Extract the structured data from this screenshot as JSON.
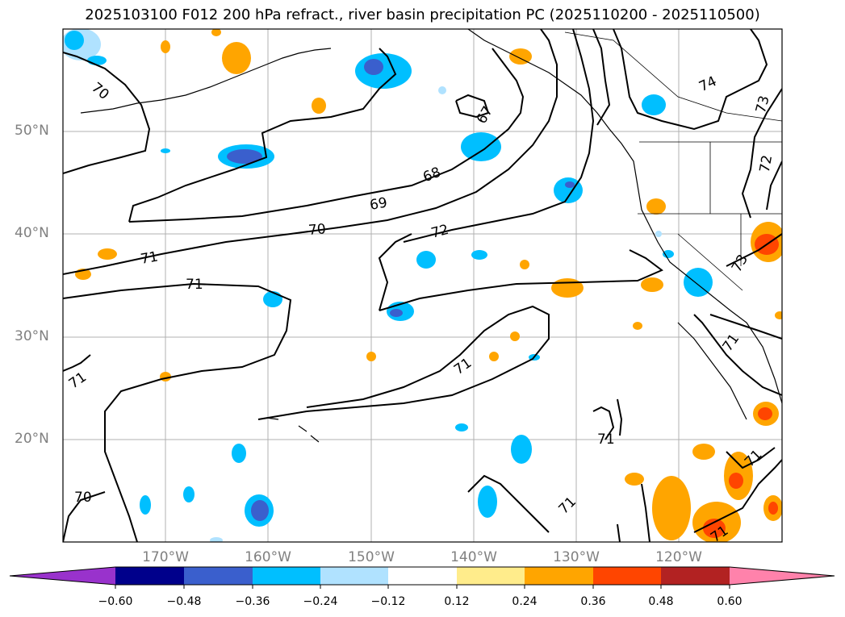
{
  "title": "2025103100 F012 200 hPa refract., river basin precipitation PC (2025110200 - 2025110500)",
  "map": {
    "lat_ticks": [
      "50°N",
      "40°N",
      "30°N",
      "20°N"
    ],
    "lon_ticks": [
      "170°W",
      "160°W",
      "150°W",
      "140°W",
      "130°W",
      "120°W"
    ],
    "contour_labels": [
      "70",
      "67",
      "74",
      "73",
      "68",
      "72",
      "69",
      "70",
      "72",
      "71",
      "71",
      "73",
      "71",
      "71",
      "71",
      "71",
      "71",
      "70",
      "71",
      "71"
    ]
  },
  "colorbar": {
    "colors": [
      "#9932cc",
      "#00008b",
      "#3a5fcd",
      "#00bfff",
      "#b0e2ff",
      "#ffffff",
      "#ffec8b",
      "#ffa500",
      "#ff4500",
      "#b22222",
      "#ff82ab"
    ],
    "ticks": [
      "−0.60",
      "−0.48",
      "−0.36",
      "−0.24",
      "−0.12",
      "0.12",
      "0.24",
      "0.36",
      "0.48",
      "0.60"
    ]
  }
}
